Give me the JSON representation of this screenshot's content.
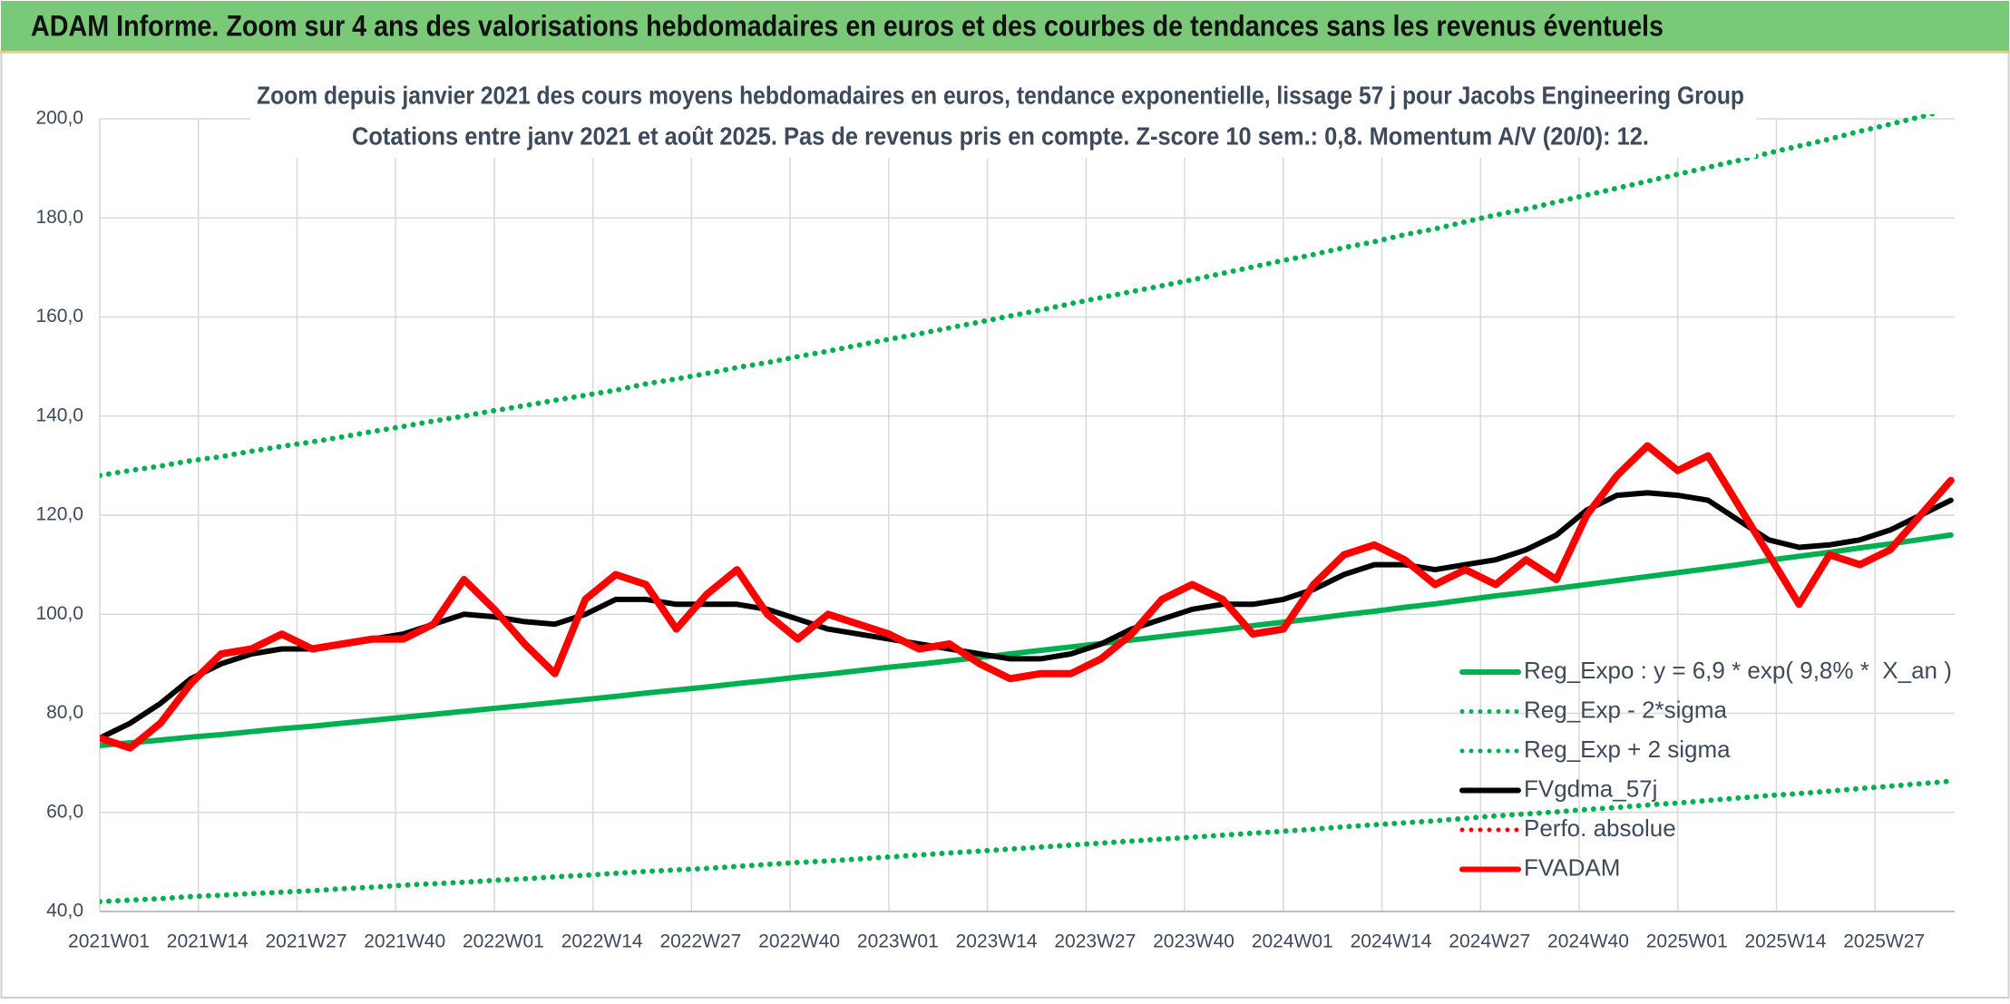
{
  "header": {
    "title": "ADAM Informe. Zoom sur 4 ans des valorisations hebdomadaires en euros et des courbes de tendances sans les revenus éventuels"
  },
  "chart_data": {
    "type": "line",
    "title": "Zoom depuis janvier 2021 des cours moyens hebdomadaires en euros, tendance exponentielle, lissage 57 j pour Jacobs Engineering Group",
    "subtitle": "Cotations entre janv 2021 et août 2025. Pas de revenus pris en compte. Z-score 10 sem.: 0,8. Momentum A/V (20/0): 12.",
    "x": [
      0,
      4,
      8,
      12,
      16,
      20,
      24,
      28,
      32,
      36,
      40,
      44,
      48,
      52,
      56,
      60,
      64,
      68,
      72,
      76,
      80,
      84,
      88,
      92,
      96,
      100,
      104,
      108,
      112,
      116,
      120,
      124,
      128,
      132,
      136,
      140,
      144,
      148,
      152,
      156,
      160,
      164,
      168,
      172,
      176,
      180,
      184,
      188,
      192,
      196,
      200,
      204,
      208,
      212,
      216,
      220,
      224,
      228,
      232,
      236,
      240,
      244
    ],
    "xlim": [
      0,
      244.5
    ],
    "xticks": [
      {
        "value": 0,
        "label": "2021W01"
      },
      {
        "value": 13,
        "label": "2021W14"
      },
      {
        "value": 26,
        "label": "2021W27"
      },
      {
        "value": 39,
        "label": "2021W40"
      },
      {
        "value": 52,
        "label": "2022W01"
      },
      {
        "value": 65,
        "label": "2022W14"
      },
      {
        "value": 78,
        "label": "2022W27"
      },
      {
        "value": 91,
        "label": "2022W40"
      },
      {
        "value": 104,
        "label": "2023W01"
      },
      {
        "value": 117,
        "label": "2023W14"
      },
      {
        "value": 130,
        "label": "2023W27"
      },
      {
        "value": 143,
        "label": "2023W40"
      },
      {
        "value": 156,
        "label": "2024W01"
      },
      {
        "value": 169,
        "label": "2024W14"
      },
      {
        "value": 182,
        "label": "2024W27"
      },
      {
        "value": 195,
        "label": "2024W40"
      },
      {
        "value": 208,
        "label": "2025W01"
      },
      {
        "value": 221,
        "label": "2025W14"
      },
      {
        "value": 234,
        "label": "2025W27"
      }
    ],
    "ylim": [
      40,
      200
    ],
    "yticks": [
      {
        "value": 40,
        "label": "40,0"
      },
      {
        "value": 60,
        "label": "60,0"
      },
      {
        "value": 80,
        "label": "80,0"
      },
      {
        "value": 100,
        "label": "100,0"
      },
      {
        "value": 120,
        "label": "120,0"
      },
      {
        "value": 140,
        "label": "140,0"
      },
      {
        "value": 160,
        "label": "160,0"
      },
      {
        "value": 180,
        "label": "180,0"
      },
      {
        "value": 200,
        "label": "200,0"
      }
    ],
    "grid": true,
    "series": [
      {
        "name": "Reg_Expo : y = 6,9 * exp( 9,8% *  X_an )",
        "color": "#00b050",
        "style": "solid",
        "values": [
          73.5,
          74.05,
          74.6,
          75.2,
          75.7,
          76.3,
          76.9,
          77.4,
          78.0,
          78.6,
          79.2,
          79.8,
          80.4,
          81.0,
          81.6,
          82.2,
          82.8,
          83.4,
          84.1,
          84.7,
          85.3,
          86.0,
          86.6,
          87.3,
          87.9,
          88.6,
          89.3,
          89.9,
          90.6,
          91.3,
          92.0,
          92.7,
          93.4,
          94.1,
          94.8,
          95.5,
          96.2,
          96.9,
          97.7,
          98.4,
          99.1,
          99.9,
          100.6,
          101.4,
          102.1,
          102.9,
          103.7,
          104.4,
          105.2,
          106.0,
          106.8,
          107.6,
          108.4,
          109.2,
          110.0,
          110.9,
          111.7,
          112.5,
          113.4,
          114.2,
          115.1,
          116.0
        ]
      },
      {
        "name": "Reg_Exp - 2*sigma",
        "color": "#00b050",
        "style": "dotted",
        "values": [
          42.0,
          42.3,
          42.6,
          43.0,
          43.3,
          43.6,
          43.9,
          44.2,
          44.6,
          44.9,
          45.3,
          45.6,
          45.9,
          46.3,
          46.6,
          47.0,
          47.3,
          47.7,
          48.1,
          48.4,
          48.7,
          49.1,
          49.5,
          49.9,
          50.2,
          50.6,
          51.0,
          51.4,
          51.8,
          52.2,
          52.6,
          53.0,
          53.4,
          53.8,
          54.2,
          54.6,
          55.0,
          55.4,
          55.8,
          56.2,
          56.6,
          57.1,
          57.5,
          57.9,
          58.3,
          58.8,
          59.3,
          59.7,
          60.1,
          60.6,
          61.0,
          61.5,
          61.9,
          62.4,
          62.9,
          63.4,
          63.8,
          64.3,
          64.8,
          65.3,
          65.8,
          66.3
        ]
      },
      {
        "name": "Reg_Exp + 2 sigma",
        "color": "#00b050",
        "style": "dotted",
        "values": [
          128.0,
          129.0,
          129.9,
          131.0,
          131.8,
          132.9,
          133.9,
          134.8,
          135.8,
          136.9,
          137.9,
          139.0,
          140.0,
          141.1,
          142.1,
          143.2,
          144.2,
          145.2,
          146.5,
          147.5,
          148.6,
          149.8,
          150.8,
          152.0,
          153.1,
          154.3,
          155.5,
          156.6,
          157.8,
          159.0,
          160.2,
          161.4,
          162.7,
          163.9,
          165.1,
          166.3,
          167.5,
          168.8,
          170.1,
          171.4,
          172.6,
          174.0,
          175.2,
          176.6,
          177.8,
          179.2,
          180.6,
          181.8,
          183.2,
          184.6,
          186.0,
          187.4,
          188.8,
          190.2,
          191.6,
          193.1,
          194.5,
          195.9,
          197.5,
          198.9,
          200.4,
          202.0
        ]
      },
      {
        "name": "FVgdma_57j",
        "color": "#000000",
        "style": "solid",
        "values": [
          75,
          78,
          82,
          87,
          90,
          92,
          93,
          93,
          94,
          95,
          96,
          98,
          100,
          99.5,
          98.5,
          98,
          100,
          103,
          103,
          102,
          102,
          102,
          101,
          99,
          97,
          96,
          95,
          94,
          93,
          92,
          91,
          91,
          92,
          94,
          97,
          99,
          101,
          102,
          102,
          103,
          105,
          108,
          110,
          110,
          109,
          110,
          111,
          113,
          116,
          121,
          124,
          124.5,
          124,
          123,
          119,
          115,
          113.5,
          114,
          115,
          117,
          120,
          123
        ]
      },
      {
        "name": "Perfo. absolue",
        "color": "#ff0000",
        "style": "dotted",
        "values": [
          null,
          null,
          null,
          null,
          null,
          null,
          null,
          null,
          null,
          null,
          null,
          null,
          null,
          null,
          null,
          null,
          null,
          null,
          null,
          null,
          null,
          null,
          null,
          null,
          null,
          null,
          null,
          null,
          null,
          null,
          null,
          null,
          null,
          null,
          null,
          null,
          null,
          null,
          null,
          null,
          null,
          null,
          null,
          null,
          null,
          null,
          null,
          null,
          null,
          null,
          null,
          null,
          null,
          null,
          null,
          null,
          null,
          null,
          null,
          null,
          null,
          null
        ]
      },
      {
        "name": "FVADAM",
        "color": "#ff0000",
        "style": "solid",
        "values": [
          75,
          73,
          78,
          86,
          92,
          93,
          96,
          93,
          94,
          95,
          95,
          98,
          107,
          101,
          94,
          88,
          103,
          108,
          106,
          97,
          104,
          109,
          100,
          95,
          100,
          98,
          96,
          93,
          94,
          90,
          87,
          88,
          88,
          91,
          96,
          103,
          106,
          103,
          96,
          97,
          106,
          112,
          114,
          111,
          106,
          109,
          106,
          111,
          107,
          120,
          128,
          134,
          129,
          132,
          122,
          112,
          102,
          112,
          110,
          113,
          120,
          127
        ]
      }
    ]
  }
}
